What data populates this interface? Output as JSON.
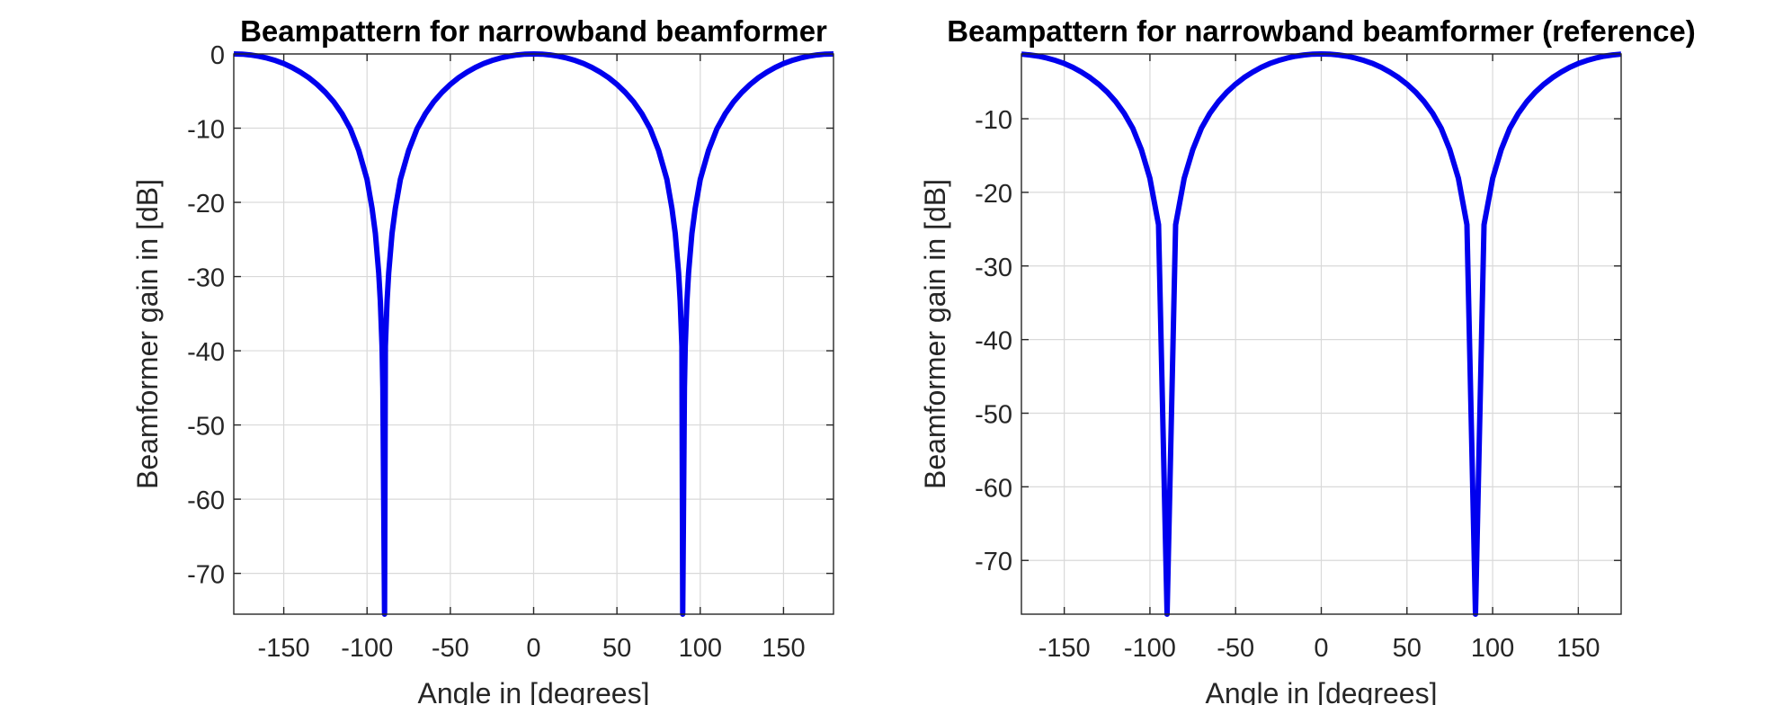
{
  "chart_data": [
    {
      "type": "line",
      "title": "Beampattern for narrowband beamformer",
      "xlabel": "Angle in [degrees]",
      "ylabel": "Beamformer gain in [dB]",
      "xlim": [
        -180,
        180
      ],
      "ylim": [
        -75.5,
        0
      ],
      "xticks": [
        -150,
        -100,
        -50,
        0,
        50,
        100,
        150
      ],
      "yticks": [
        0,
        -10,
        -20,
        -30,
        -40,
        -50,
        -60,
        -70
      ],
      "xtick_labels": [
        "-150",
        "-100",
        "-50",
        "0",
        "50",
        "100",
        "150"
      ],
      "ytick_labels": [
        "0",
        "-10",
        "-20",
        "-30",
        "-40",
        "-50",
        "-60",
        "-70"
      ],
      "grid": true,
      "series": [
        {
          "color": "#0000ee",
          "x": [
            -180,
            -175,
            -170,
            -165,
            -160,
            -155,
            -150,
            -145,
            -140,
            -135,
            -130,
            -125,
            -120,
            -115,
            -110,
            -105,
            -100,
            -97,
            -95,
            -93,
            -92,
            -91,
            -90.5,
            -89.5,
            -89,
            -88,
            -87,
            -85,
            -83,
            -80,
            -75,
            -70,
            -65,
            -60,
            -55,
            -50,
            -45,
            -40,
            -35,
            -30,
            -25,
            -20,
            -15,
            -10,
            -5,
            0,
            5,
            10,
            15,
            20,
            25,
            30,
            35,
            40,
            45,
            50,
            55,
            60,
            65,
            70,
            75,
            80,
            83,
            85,
            87,
            88,
            89,
            89.5,
            90.5,
            91,
            92,
            93,
            95,
            97,
            100,
            105,
            110,
            115,
            120,
            125,
            130,
            135,
            140,
            145,
            150,
            155,
            160,
            165,
            170,
            175,
            180
          ],
          "y": [
            0,
            -0.03,
            -0.13,
            -0.31,
            -0.56,
            -0.89,
            -1.3,
            -1.82,
            -2.45,
            -3.2,
            -4.1,
            -5.17,
            -6.46,
            -8.06,
            -10.1,
            -13,
            -16.9,
            -20.8,
            -24.2,
            -29.5,
            -33.3,
            -39.4,
            -45,
            -75.5,
            -39.4,
            -33.3,
            -29.5,
            -24.2,
            -20.8,
            -16.9,
            -13,
            -10.1,
            -8.06,
            -6.46,
            -5.17,
            -4.1,
            -3.2,
            -2.45,
            -1.82,
            -1.3,
            -0.89,
            -0.56,
            -0.31,
            -0.13,
            -0.03,
            0,
            -0.03,
            -0.13,
            -0.31,
            -0.56,
            -0.89,
            -1.3,
            -1.82,
            -2.45,
            -3.2,
            -4.1,
            -5.17,
            -6.46,
            -8.06,
            -10.1,
            -13,
            -16.9,
            -20.8,
            -24.2,
            -29.5,
            -33.3,
            -39.4,
            -75.5,
            -45,
            -39.4,
            -33.3,
            -29.5,
            -24.2,
            -20.8,
            -16.9,
            -13,
            -10.1,
            -8.06,
            -6.46,
            -5.17,
            -4.1,
            -3.2,
            -2.45,
            -1.82,
            -1.3,
            -0.89,
            -0.56,
            -0.31,
            -0.13,
            -0.03,
            0
          ]
        }
      ]
    },
    {
      "type": "line",
      "title": "Beampattern for narrowband beamformer (reference)",
      "xlabel": "Angle in [degrees]",
      "ylabel": "Beamformer gain in [dB]",
      "xlim": [
        -175,
        175
      ],
      "ylim": [
        -77.3,
        -1.2
      ],
      "xticks": [
        -150,
        -100,
        -50,
        0,
        50,
        100,
        150
      ],
      "yticks": [
        -10,
        -20,
        -30,
        -40,
        -50,
        -60,
        -70
      ],
      "xtick_labels": [
        "-150",
        "-100",
        "-50",
        "0",
        "50",
        "100",
        "150"
      ],
      "ytick_labels": [
        "-10",
        "-20",
        "-30",
        "-40",
        "-50",
        "-60",
        "-70"
      ],
      "grid": true,
      "series": [
        {
          "color": "#0000ee",
          "x": [
            -175,
            -170,
            -165,
            -160,
            -155,
            -150,
            -145,
            -140,
            -135,
            -130,
            -125,
            -120,
            -115,
            -110,
            -105,
            -100,
            -95,
            -90,
            -85,
            -80,
            -75,
            -70,
            -65,
            -60,
            -55,
            -50,
            -45,
            -40,
            -35,
            -30,
            -25,
            -20,
            -15,
            -10,
            -5,
            0,
            5,
            10,
            15,
            20,
            25,
            30,
            35,
            40,
            45,
            50,
            55,
            60,
            65,
            70,
            75,
            80,
            85,
            90,
            95,
            100,
            105,
            110,
            115,
            120,
            125,
            130,
            135,
            140,
            145,
            150,
            155,
            160,
            165,
            170,
            175
          ],
          "y": [
            -1.23,
            -1.33,
            -1.51,
            -1.76,
            -2.09,
            -2.5,
            -3.02,
            -3.65,
            -4.4,
            -5.3,
            -6.37,
            -7.66,
            -9.26,
            -11.3,
            -14.2,
            -18.1,
            -24.4,
            -77.3,
            -24.4,
            -18.1,
            -14.2,
            -11.3,
            -9.26,
            -7.66,
            -6.37,
            -5.3,
            -4.4,
            -3.65,
            -3.02,
            -2.5,
            -2.09,
            -1.76,
            -1.51,
            -1.33,
            -1.23,
            -1.2,
            -1.23,
            -1.33,
            -1.51,
            -1.76,
            -2.09,
            -2.5,
            -3.02,
            -3.65,
            -4.4,
            -5.3,
            -6.37,
            -7.66,
            -9.26,
            -11.3,
            -14.2,
            -18.1,
            -24.4,
            -77.3,
            -24.4,
            -18.1,
            -14.2,
            -11.3,
            -9.26,
            -7.66,
            -6.37,
            -5.3,
            -4.4,
            -3.65,
            -3.02,
            -2.5,
            -2.09,
            -1.76,
            -1.51,
            -1.33,
            -1.23
          ]
        }
      ]
    }
  ]
}
